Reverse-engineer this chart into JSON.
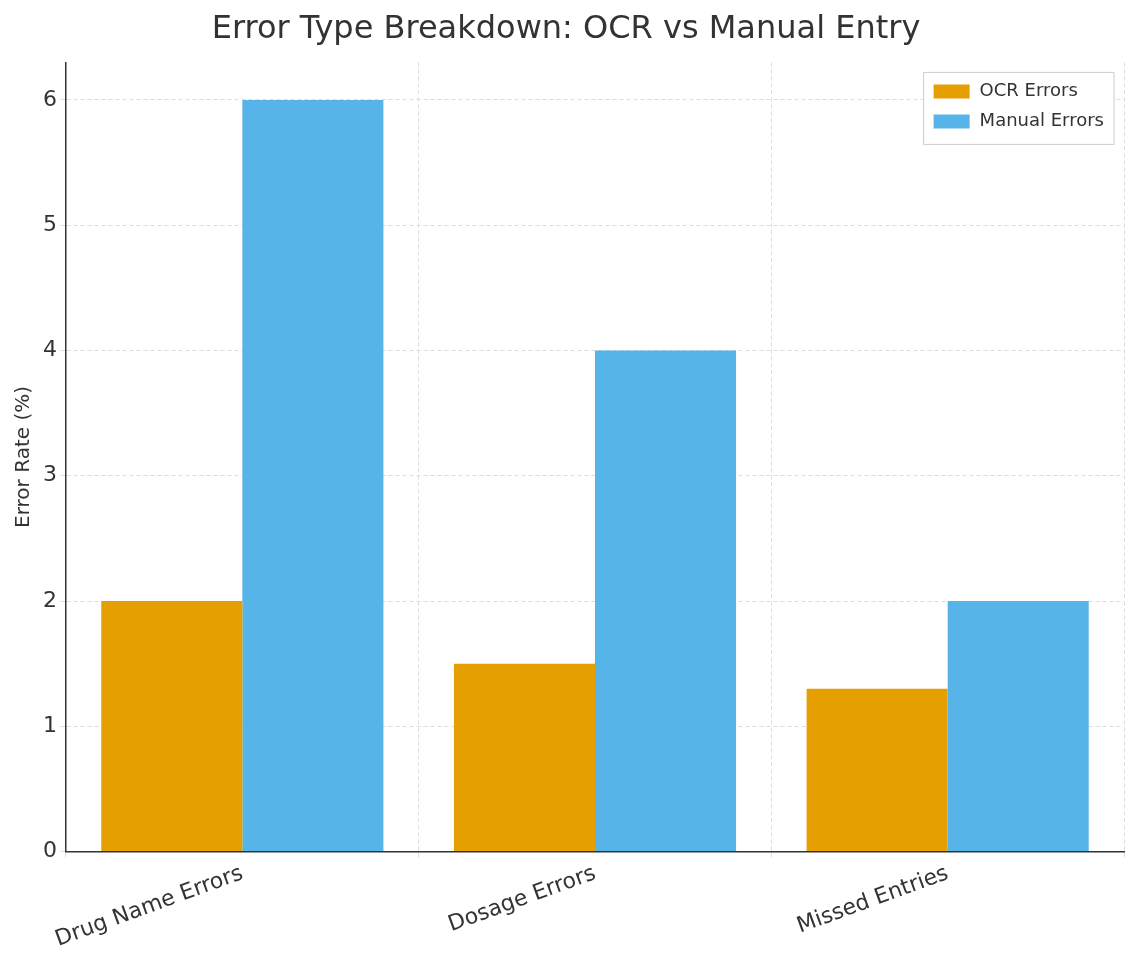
{
  "chart_data": {
    "type": "bar",
    "title": "Error Type Breakdown: OCR vs Manual Entry",
    "ylabel": "Error Rate (%)",
    "categories": [
      "Drug Name Errors",
      "Dosage Errors",
      "Missed Entries"
    ],
    "series": [
      {
        "name": "OCR Errors",
        "color": "#e69f00",
        "values": [
          2,
          1.5,
          1.3
        ]
      },
      {
        "name": "Manual Errors",
        "color": "#56b4e9",
        "values": [
          6,
          4,
          2
        ]
      }
    ],
    "ylim": [
      0,
      6.3
    ],
    "yticks": [
      0,
      1,
      2,
      3,
      4,
      5,
      6
    ],
    "grid": true,
    "legend": "top right"
  }
}
